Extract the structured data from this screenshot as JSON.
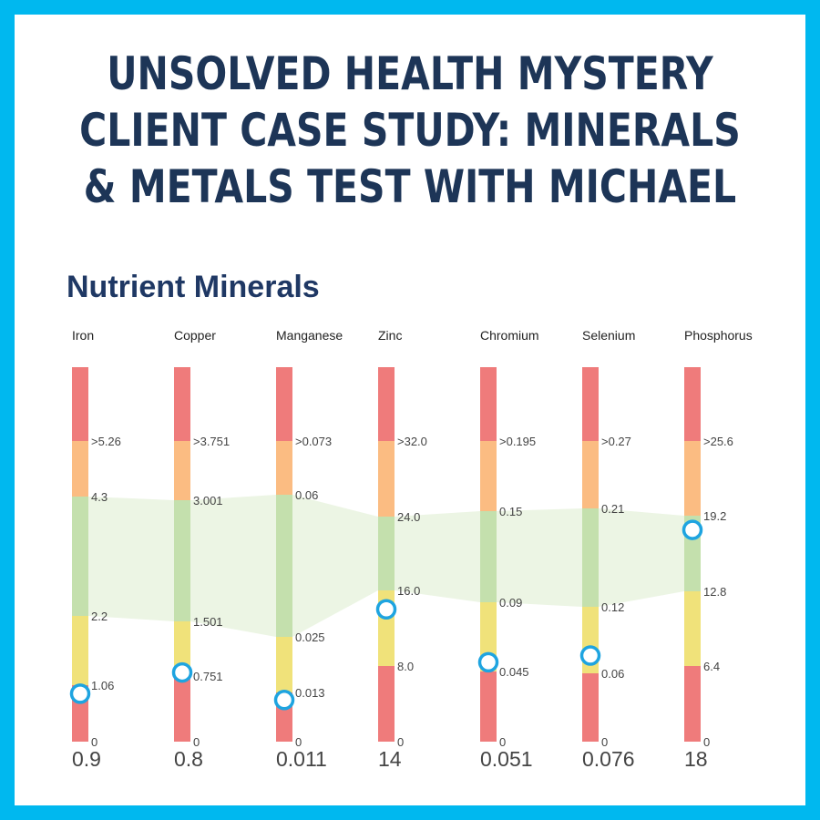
{
  "headline": {
    "line1": "UNSOLVED HEALTH MYSTERY",
    "line2": "CLIENT CASE STUDY: MINERALS",
    "line3": "& METALS TEST WITH MICHAEL"
  },
  "section_title": "Nutrient Minerals",
  "colors": {
    "frame": "#00b8ef",
    "high": "#ef7b7b",
    "elevated": "#fbbc82",
    "optimal": "#c4e0ad",
    "low": "#f0e27a",
    "deficient": "#ef7b7b",
    "band": "#ecf5e4",
    "marker": "#1ea4e0",
    "title": "#1f3864"
  },
  "chart_data": {
    "type": "bar",
    "categories": [
      "Iron",
      "Copper",
      "Manganese",
      "Zinc",
      "Chromium",
      "Selenium",
      "Phosphorus"
    ],
    "series": [
      {
        "values": [
          0.9,
          0.8,
          0.011,
          14,
          0.051,
          0.076,
          18
        ]
      }
    ],
    "ranges": [
      {
        "mineral": "Iron",
        "high": ">5.26",
        "optimal_high": "4.3",
        "optimal_low": "2.2",
        "low": "1.06",
        "zero": "0",
        "value": 0.9,
        "value_label": "0.9",
        "bounds": {
          "high": 5.26,
          "optimal_high": 4.3,
          "optimal_low": 2.2,
          "low": 1.06
        }
      },
      {
        "mineral": "Copper",
        "high": ">3.751",
        "optimal_high": "3.001",
        "optimal_low": "1.501",
        "low": "0.751",
        "zero": "0",
        "value": 0.8,
        "value_label": "0.8",
        "bounds": {
          "high": 3.751,
          "optimal_high": 3.001,
          "optimal_low": 1.501,
          "low": 0.751
        }
      },
      {
        "mineral": "Manganese",
        "high": ">0.073",
        "optimal_high": "0.06",
        "optimal_low": "0.025",
        "low": "0.013",
        "zero": "0",
        "value": 0.011,
        "value_label": "0.011",
        "bounds": {
          "high": 0.073,
          "optimal_high": 0.06,
          "optimal_low": 0.025,
          "low": 0.013
        }
      },
      {
        "mineral": "Zinc",
        "high": ">32.0",
        "optimal_high": "24.0",
        "optimal_low": "16.0",
        "low": "8.0",
        "zero": "0",
        "value": 14,
        "value_label": "14",
        "bounds": {
          "high": 32.0,
          "optimal_high": 24.0,
          "optimal_low": 16.0,
          "low": 8.0
        }
      },
      {
        "mineral": "Chromium",
        "high": ">0.195",
        "optimal_high": "0.15",
        "optimal_low": "0.09",
        "low": "0.045",
        "zero": "0",
        "value": 0.051,
        "value_label": "0.051",
        "bounds": {
          "high": 0.195,
          "optimal_high": 0.15,
          "optimal_low": 0.09,
          "low": 0.045
        }
      },
      {
        "mineral": "Selenium",
        "high": ">0.27",
        "optimal_high": "0.21",
        "optimal_low": "0.12",
        "low": "0.06",
        "zero": "0",
        "value": 0.076,
        "value_label": "0.076",
        "bounds": {
          "high": 0.27,
          "optimal_high": 0.21,
          "optimal_low": 0.12,
          "low": 0.06
        }
      },
      {
        "mineral": "Phosphorus",
        "high": ">25.6",
        "optimal_high": "19.2",
        "optimal_low": "12.8",
        "low": "6.4",
        "zero": "0",
        "value": 18,
        "value_label": "18",
        "bounds": {
          "high": 25.6,
          "optimal_high": 19.2,
          "optimal_low": 12.8,
          "low": 6.4
        }
      }
    ],
    "title": "Nutrient Minerals",
    "xlabel": "",
    "ylabel": "",
    "grid": false,
    "legend": "none"
  }
}
